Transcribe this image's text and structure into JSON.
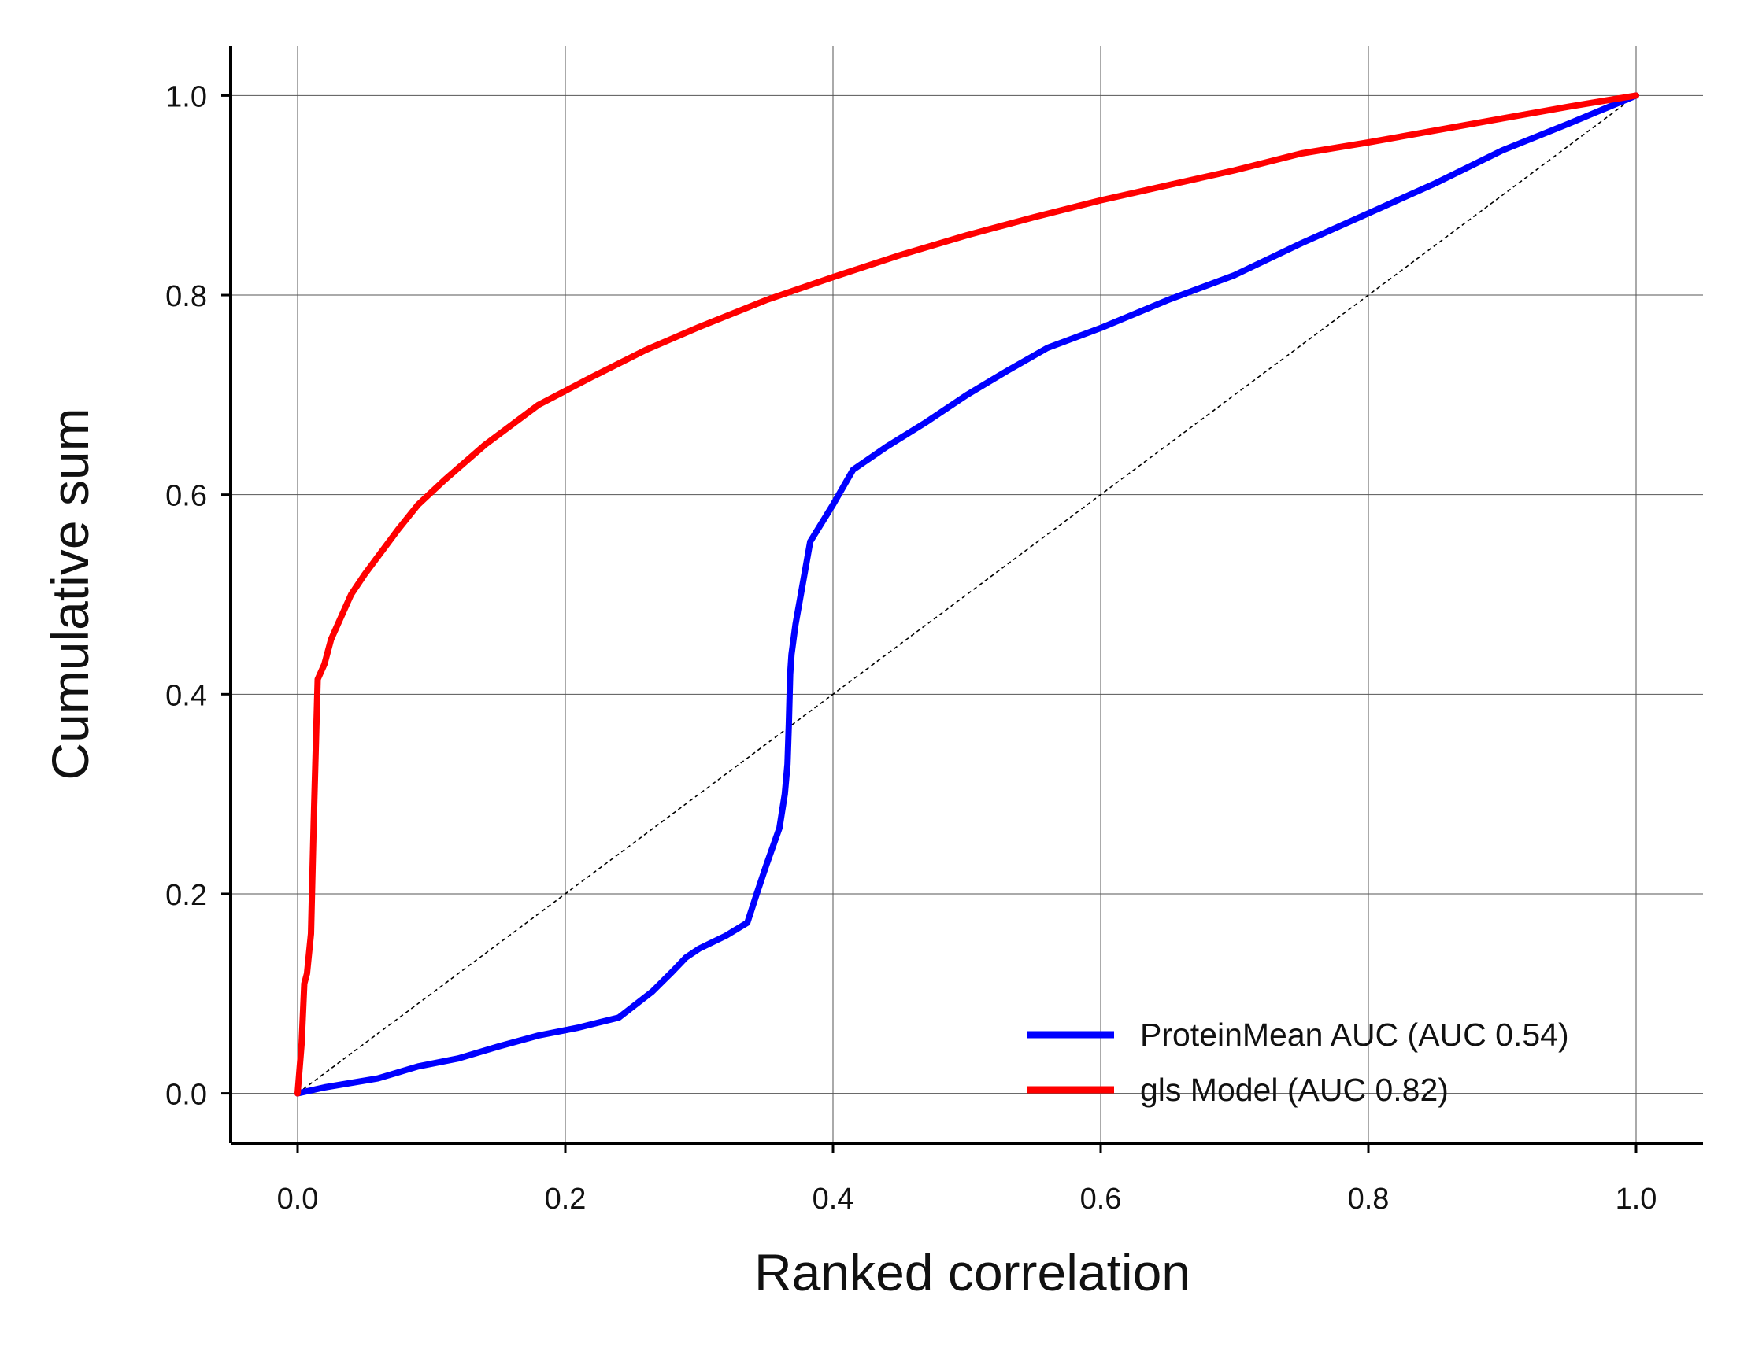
{
  "chart_data": {
    "type": "line",
    "title": "",
    "xlabel": "Ranked correlation",
    "ylabel": "Cumulative sum",
    "xlim": [
      -0.05,
      1.05
    ],
    "ylim": [
      -0.05,
      1.05
    ],
    "xticks": [
      "0.0",
      "0.2",
      "0.4",
      "0.6",
      "0.8",
      "1.0"
    ],
    "yticks": [
      "0.0",
      "0.2",
      "0.4",
      "0.6",
      "0.8",
      "1.0"
    ],
    "grid": true,
    "legend_position": "bottom-right",
    "reference_line": {
      "x": [
        0,
        1
      ],
      "y": [
        0,
        1
      ],
      "style": "dashed",
      "color": "#000000"
    },
    "series": [
      {
        "name": "ProteinMean AUC (AUC 0.54)",
        "color": "#0000ff",
        "x": [
          0,
          0.02,
          0.06,
          0.09,
          0.12,
          0.15,
          0.18,
          0.21,
          0.24,
          0.265,
          0.28,
          0.29,
          0.3,
          0.32,
          0.336,
          0.343,
          0.35,
          0.36,
          0.364,
          0.366,
          0.367,
          0.368,
          0.369,
          0.372,
          0.383,
          0.4,
          0.415,
          0.44,
          0.47,
          0.5,
          0.53,
          0.56,
          0.6,
          0.65,
          0.7,
          0.75,
          0.8,
          0.85,
          0.9,
          0.95,
          1.0
        ],
        "y": [
          0,
          0.006,
          0.015,
          0.027,
          0.035,
          0.047,
          0.058,
          0.066,
          0.076,
          0.102,
          0.122,
          0.136,
          0.145,
          0.158,
          0.171,
          0.2,
          0.228,
          0.266,
          0.3,
          0.33,
          0.37,
          0.42,
          0.44,
          0.47,
          0.553,
          0.59,
          0.625,
          0.648,
          0.673,
          0.7,
          0.724,
          0.747,
          0.767,
          0.795,
          0.82,
          0.852,
          0.882,
          0.912,
          0.945,
          0.972,
          1.0
        ]
      },
      {
        "name": "gls Model (AUC 0.82)",
        "color": "#ff0000",
        "x": [
          0,
          0.003,
          0.005,
          0.007,
          0.01,
          0.012,
          0.015,
          0.02,
          0.025,
          0.03,
          0.04,
          0.05,
          0.06,
          0.075,
          0.09,
          0.11,
          0.14,
          0.18,
          0.22,
          0.26,
          0.3,
          0.35,
          0.4,
          0.45,
          0.5,
          0.55,
          0.6,
          0.65,
          0.7,
          0.75,
          0.8,
          0.85,
          0.9,
          0.95,
          1.0
        ],
        "y": [
          0,
          0.05,
          0.11,
          0.12,
          0.16,
          0.27,
          0.415,
          0.43,
          0.455,
          0.47,
          0.5,
          0.52,
          0.538,
          0.565,
          0.59,
          0.615,
          0.65,
          0.69,
          0.718,
          0.745,
          0.768,
          0.795,
          0.818,
          0.84,
          0.86,
          0.878,
          0.895,
          0.91,
          0.925,
          0.942,
          0.953,
          0.965,
          0.977,
          0.989,
          1.0
        ]
      }
    ]
  }
}
